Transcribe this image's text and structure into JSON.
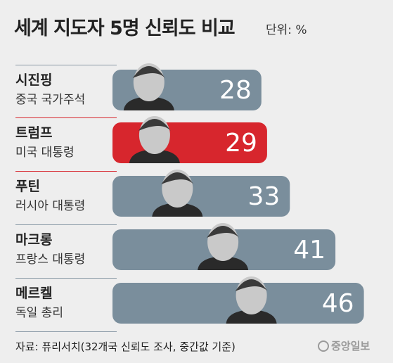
{
  "header": {
    "title": "세계 지도자 5명 신뢰도 비교",
    "unit": "단위: %"
  },
  "chart_data": {
    "type": "bar",
    "title": "세계 지도자 5명 신뢰도 비교",
    "unit": "단위: %",
    "categories": [
      "시진핑",
      "트럼프",
      "푸틴",
      "마크롱",
      "메르켈"
    ],
    "roles": [
      "중국 국가주석",
      "미국 대통령",
      "러시아 대통령",
      "프랑스 대통령",
      "독일 총리"
    ],
    "values": [
      28,
      29,
      33,
      41,
      46
    ],
    "value_labels": [
      "28",
      "29",
      "33",
      "41",
      "46"
    ],
    "highlight_index": 1,
    "colors": {
      "bar": "#7a8e9c",
      "highlight": "#d7262d",
      "value_text": "#ffffff"
    }
  },
  "footer": {
    "source": "자료: 퓨리서치(32개국 신뢰도 조사, 중간값 기준)",
    "logo": "중앙일보"
  }
}
